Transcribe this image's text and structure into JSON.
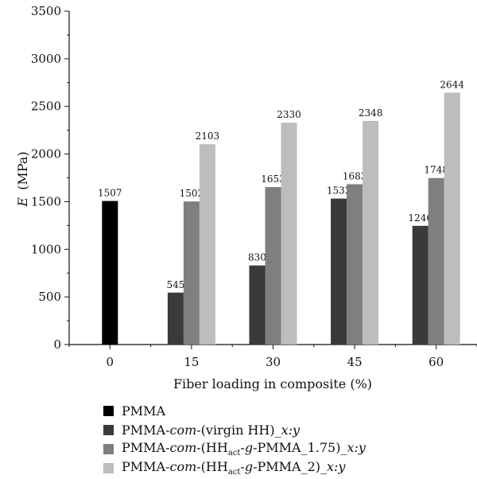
{
  "chart_data": {
    "type": "bar",
    "xlabel": "Fiber loading in composite (%)",
    "ylabel": "(MPa)",
    "ylabel_italic": "E",
    "ylim": [
      0,
      3500
    ],
    "yticks": [
      0,
      500,
      1000,
      1500,
      2000,
      2500,
      3000,
      3500
    ],
    "categories": [
      "0",
      "15",
      "30",
      "45",
      "60"
    ],
    "grid": false,
    "legend_position": "bottom",
    "series": [
      {
        "name": "PMMA",
        "color": "#000000",
        "values": [
          1507,
          null,
          null,
          null,
          null
        ]
      },
      {
        "name": "PMMA-com-(virgin HH)_x:y",
        "color": "#3a3a3a",
        "values": [
          null,
          545,
          830,
          1532,
          1246
        ]
      },
      {
        "name": "PMMA-com-(HHact-g-PMMA_1.75)_x:y",
        "color": "#7f7f7f",
        "values": [
          null,
          1502,
          1653,
          1683,
          1748
        ]
      },
      {
        "name": "PMMA-com-(HHact-g-PMMA_2)_x:y",
        "color": "#bdbdbd",
        "values": [
          null,
          2103,
          2330,
          2348,
          2644
        ]
      }
    ],
    "legend_parts": [
      [
        {
          "t": "PMMA"
        }
      ],
      [
        {
          "t": "PMMA-"
        },
        {
          "t": "com",
          "i": true
        },
        {
          "t": "-(virgin HH)_"
        },
        {
          "t": "x:y",
          "i": true
        }
      ],
      [
        {
          "t": "PMMA-"
        },
        {
          "t": "com",
          "i": true
        },
        {
          "t": "-(HH"
        },
        {
          "t": "act",
          "sub": true
        },
        {
          "t": "-"
        },
        {
          "t": "g",
          "i": true
        },
        {
          "t": "-PMMA_1.75)_"
        },
        {
          "t": "x:y",
          "i": true
        }
      ],
      [
        {
          "t": "PMMA-"
        },
        {
          "t": "com",
          "i": true
        },
        {
          "t": "-(HH"
        },
        {
          "t": "act",
          "sub": true
        },
        {
          "t": "-"
        },
        {
          "t": "g",
          "i": true
        },
        {
          "t": "-PMMA_2)_"
        },
        {
          "t": "x:y",
          "i": true
        }
      ]
    ]
  }
}
